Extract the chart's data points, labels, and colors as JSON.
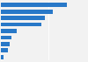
{
  "values": [
    7000,
    5500,
    4700,
    4300,
    1700,
    1150,
    900,
    750,
    320
  ],
  "bar_color": "#2878c8",
  "background_color": "#f2f2f2",
  "bar_height": 0.65,
  "xlim_max": 8500
}
